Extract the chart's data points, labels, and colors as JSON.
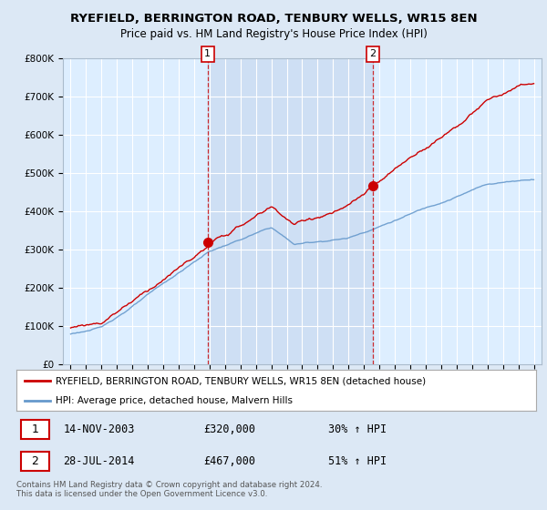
{
  "title": "RYEFIELD, BERRINGTON ROAD, TENBURY WELLS, WR15 8EN",
  "subtitle": "Price paid vs. HM Land Registry's House Price Index (HPI)",
  "background_color": "#dce8f5",
  "plot_bg_color": "#ddeeff",
  "legend_line1": "RYEFIELD, BERRINGTON ROAD, TENBURY WELLS, WR15 8EN (detached house)",
  "legend_line2": "HPI: Average price, detached house, Malvern Hills",
  "sale1_date": "14-NOV-2003",
  "sale1_price": "£320,000",
  "sale1_hpi": "30% ↑ HPI",
  "sale2_date": "28-JUL-2014",
  "sale2_price": "£467,000",
  "sale2_hpi": "51% ↑ HPI",
  "footer": "Contains HM Land Registry data © Crown copyright and database right 2024.\nThis data is licensed under the Open Government Licence v3.0.",
  "sale1_x": 2003.87,
  "sale1_y": 320000,
  "sale2_x": 2014.57,
  "sale2_y": 467000,
  "red_color": "#cc0000",
  "blue_color": "#6699cc",
  "vline_color": "#cc0000",
  "shade_color": "#c8daf0",
  "ylim_min": 0,
  "ylim_max": 800000,
  "xlim_min": 1994.5,
  "xlim_max": 2025.5,
  "yticks": [
    0,
    100000,
    200000,
    300000,
    400000,
    500000,
    600000,
    700000,
    800000
  ],
  "ytick_labels": [
    "£0",
    "£100K",
    "£200K",
    "£300K",
    "£400K",
    "£500K",
    "£600K",
    "£700K",
    "£800K"
  ]
}
